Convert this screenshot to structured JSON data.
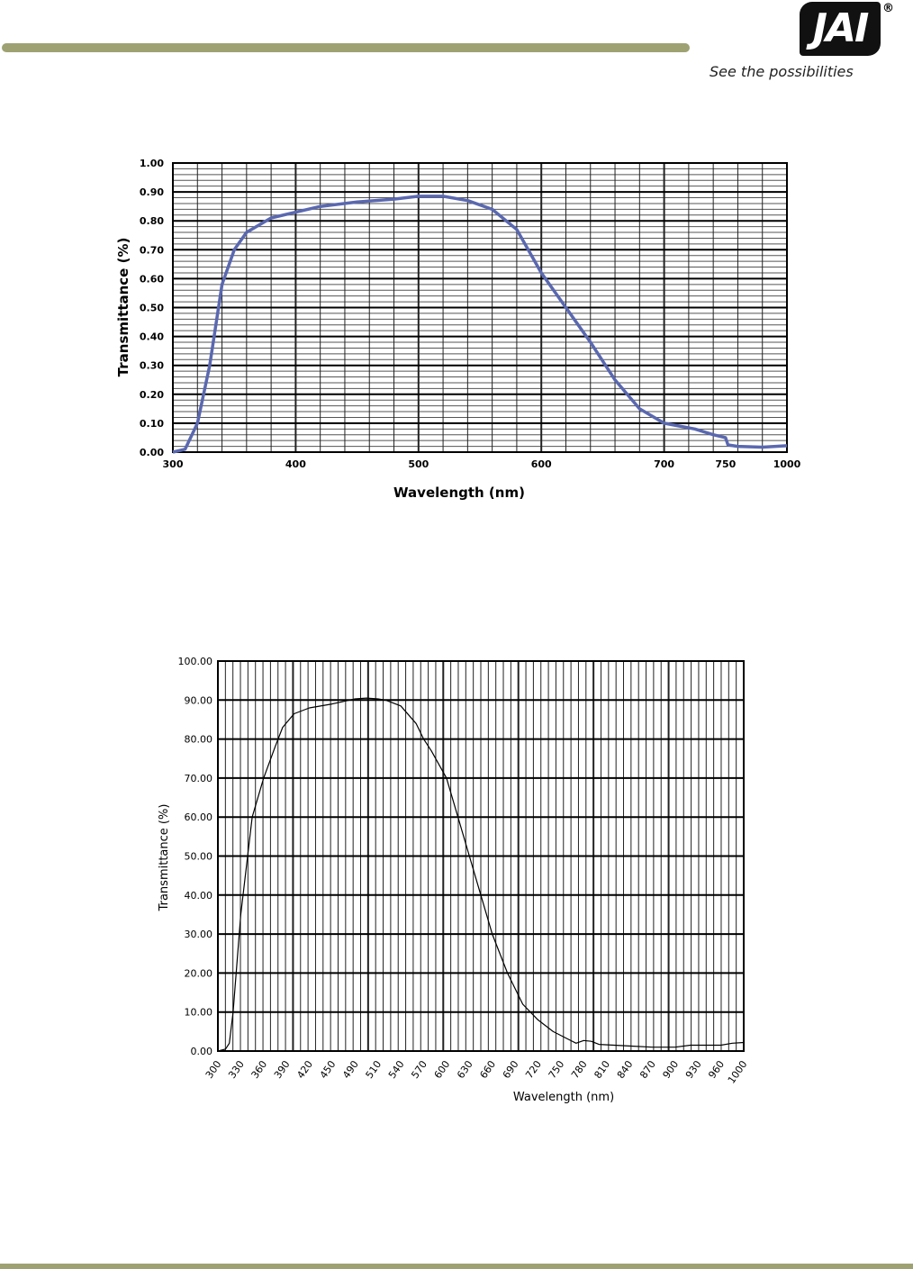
{
  "header": {
    "logo_text": "JAI",
    "registered_mark": "®",
    "tagline": "See the possibilities",
    "accent_color": "#9ea272"
  },
  "chart_data": [
    {
      "type": "line",
      "title": "",
      "xlabel": "Wavelength (nm)",
      "ylabel": "Transmittance (%)",
      "color": "#5a68b0",
      "x_ticks": [
        300,
        400,
        500,
        600,
        700,
        750,
        1000
      ],
      "y_ticks": [
        "0.00",
        "0.10",
        "0.20",
        "0.30",
        "0.40",
        "0.50",
        "0.60",
        "0.70",
        "0.80",
        "0.90",
        "1.00"
      ],
      "ylim": [
        0,
        1
      ],
      "x": [
        300,
        310,
        320,
        330,
        340,
        350,
        360,
        380,
        400,
        420,
        450,
        480,
        500,
        520,
        540,
        560,
        580,
        600,
        620,
        640,
        660,
        680,
        700,
        725,
        740,
        750,
        760,
        800,
        900,
        1000
      ],
      "y": [
        0,
        0.01,
        0.1,
        0.3,
        0.58,
        0.7,
        0.76,
        0.81,
        0.83,
        0.85,
        0.865,
        0.875,
        0.885,
        0.885,
        0.87,
        0.84,
        0.77,
        0.62,
        0.5,
        0.38,
        0.25,
        0.15,
        0.1,
        0.08,
        0.06,
        0.05,
        0.025,
        0.02,
        0.017,
        0.022
      ]
    },
    {
      "type": "line",
      "title": "",
      "xlabel": "Wavelength (nm)",
      "ylabel": "Transmittance (%)",
      "color": "#000000",
      "x_ticks": [
        300,
        330,
        360,
        390,
        420,
        450,
        490,
        510,
        540,
        570,
        600,
        630,
        660,
        690,
        720,
        750,
        780,
        810,
        840,
        870,
        900,
        930,
        960,
        1000
      ],
      "y_ticks": [
        "0.00",
        "10.00",
        "20.00",
        "30.00",
        "40.00",
        "50.00",
        "60.00",
        "70.00",
        "80.00",
        "90.00",
        "100.00"
      ],
      "ylim": [
        0,
        100
      ],
      "x": [
        300,
        310,
        315,
        320,
        330,
        345,
        360,
        375,
        385,
        400,
        420,
        450,
        490,
        500,
        510,
        520,
        540,
        560,
        570,
        580,
        600,
        615,
        630,
        645,
        660,
        680,
        700,
        720,
        740,
        760,
        770,
        780,
        790,
        800,
        840,
        870,
        900,
        920,
        960,
        980,
        1000
      ],
      "y": [
        0,
        0.5,
        2,
        10,
        35,
        60,
        70,
        78,
        83,
        86.5,
        88,
        89,
        90.3,
        90.5,
        90.3,
        90,
        88.5,
        84,
        80,
        77,
        70,
        60,
        50,
        40,
        30,
        20,
        12,
        8,
        5,
        3,
        2,
        2.7,
        2.5,
        1.7,
        1.3,
        1,
        1,
        1.5,
        1.5,
        2,
        2.2
      ]
    }
  ]
}
